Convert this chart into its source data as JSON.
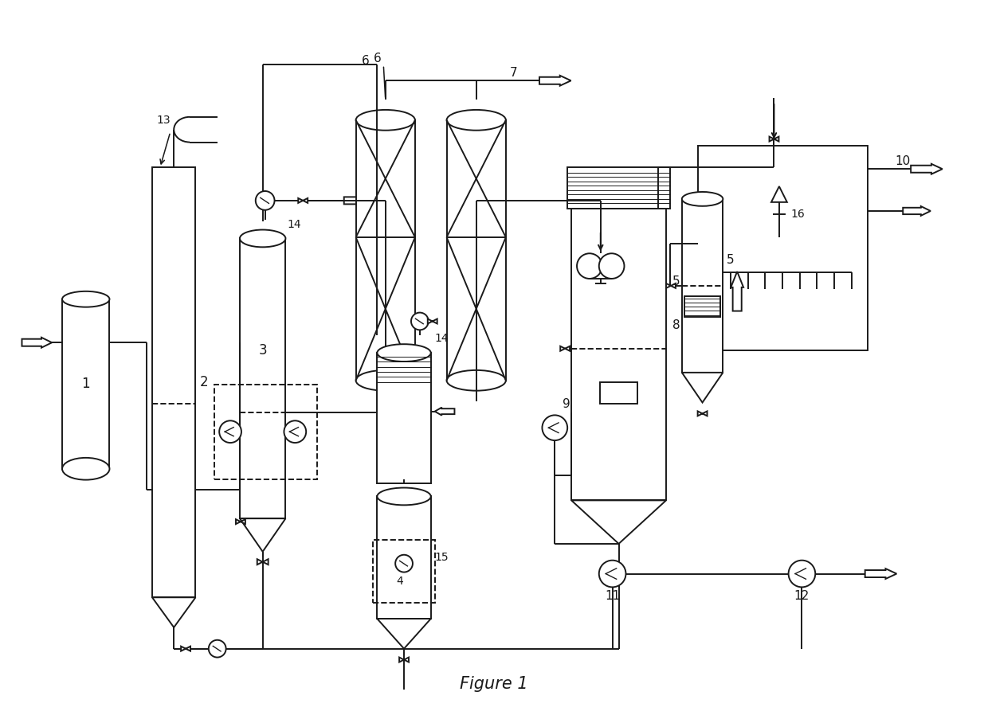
{
  "title": "Figure 1",
  "bg": "#ffffff",
  "lc": "#1a1a1a",
  "lw": 1.4,
  "fw": 12.4,
  "fh": 9.08,
  "dpi": 100
}
